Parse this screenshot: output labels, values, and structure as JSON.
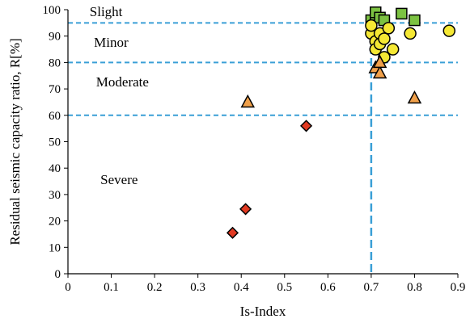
{
  "chart_data": {
    "type": "scatter",
    "title": "",
    "xlabel": "Is-Index",
    "ylabel": "Residual seismic capacity ratio, R[%]",
    "xlim": [
      0,
      0.9
    ],
    "ylim": [
      0,
      100
    ],
    "xticks": [
      "0",
      "0.1",
      "0.2",
      "0.3",
      "0.4",
      "0.5",
      "0.6",
      "0.7",
      "0.8",
      "0.9"
    ],
    "yticks": [
      "0",
      "10",
      "20",
      "30",
      "40",
      "50",
      "60",
      "70",
      "80",
      "90",
      "100"
    ],
    "grid": false,
    "legend": "none",
    "thresholds": {
      "horizontal": [
        95,
        80,
        60
      ],
      "vertical": [
        0.7
      ],
      "color": "#3a9fd6"
    },
    "zones": [
      {
        "label": "Slight",
        "x": 0.05,
        "y": 97.5
      },
      {
        "label": "Minor",
        "x": 0.06,
        "y": 86
      },
      {
        "label": "Moderate",
        "x": 0.065,
        "y": 71
      },
      {
        "label": "Severe",
        "x": 0.075,
        "y": 34
      }
    ],
    "series": [
      {
        "marker": "square",
        "color": "#7cc242",
        "points": [
          [
            0.7,
            96
          ],
          [
            0.71,
            98
          ],
          [
            0.71,
            99
          ],
          [
            0.72,
            97
          ],
          [
            0.73,
            96
          ],
          [
            0.77,
            98.5
          ],
          [
            0.8,
            96
          ]
        ]
      },
      {
        "marker": "circle",
        "color": "#f5e834",
        "points": [
          [
            0.7,
            91
          ],
          [
            0.7,
            94
          ],
          [
            0.71,
            88
          ],
          [
            0.71,
            85
          ],
          [
            0.72,
            91
          ],
          [
            0.72,
            87
          ],
          [
            0.73,
            89
          ],
          [
            0.73,
            82
          ],
          [
            0.74,
            93
          ],
          [
            0.75,
            85
          ],
          [
            0.79,
            91
          ],
          [
            0.88,
            92
          ]
        ]
      },
      {
        "marker": "triangle",
        "color": "#f0a04a",
        "points": [
          [
            0.415,
            65
          ],
          [
            0.71,
            78
          ],
          [
            0.72,
            76
          ],
          [
            0.72,
            80
          ],
          [
            0.8,
            66.5
          ]
        ]
      },
      {
        "marker": "diamond",
        "color": "#e23a22",
        "points": [
          [
            0.38,
            15.5
          ],
          [
            0.41,
            24.5
          ],
          [
            0.55,
            56
          ]
        ]
      }
    ]
  }
}
